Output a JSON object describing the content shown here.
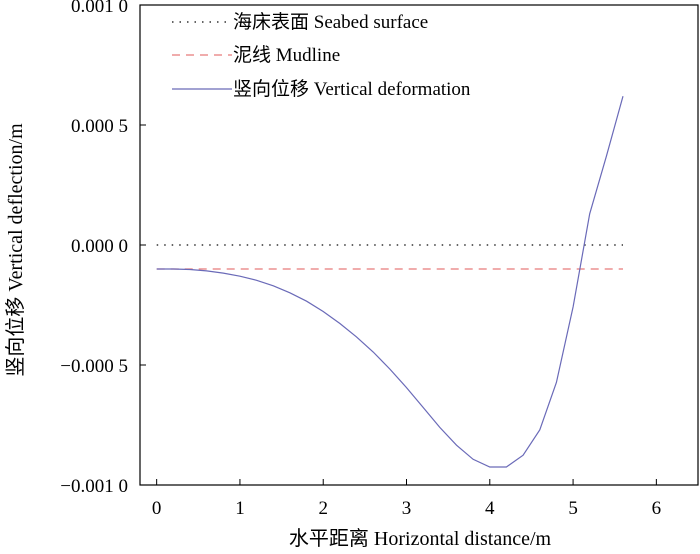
{
  "chart_data": {
    "type": "line",
    "xlabel": "水平距离 Horizontal distance/m",
    "ylabel": "竖向位移 Vertical deflection/m",
    "xlim": [
      -0.2,
      6.5
    ],
    "ylim": [
      -0.001,
      0.001
    ],
    "x_ticks": [
      {
        "value": 0,
        "label": "0"
      },
      {
        "value": 1,
        "label": "1"
      },
      {
        "value": 2,
        "label": "2"
      },
      {
        "value": 3,
        "label": "3"
      },
      {
        "value": 4,
        "label": "4"
      },
      {
        "value": 5,
        "label": "5"
      },
      {
        "value": 6,
        "label": "6"
      }
    ],
    "y_ticks": [
      {
        "value": 0.001,
        "label": "0.001 0"
      },
      {
        "value": 0.0005,
        "label": "0.000 5"
      },
      {
        "value": 0.0,
        "label": "0.000 0"
      },
      {
        "value": -0.0005,
        "label": "−0.000 5"
      },
      {
        "value": -0.001,
        "label": "−0.001 0"
      }
    ],
    "legend_position": "top-left",
    "series": [
      {
        "name": "海床表面 Seabed surface",
        "style": "dotted",
        "color": "#333333",
        "x": [
          0,
          5.6
        ],
        "y": [
          0.0,
          0.0
        ]
      },
      {
        "name": "泥线 Mudline",
        "style": "dashed",
        "color": "#e87a7a",
        "x": [
          0,
          5.6
        ],
        "y": [
          -0.0001,
          -0.0001
        ]
      },
      {
        "name": "竖向位移 Vertical deformation",
        "style": "solid",
        "color": "#6a6ab8",
        "x": [
          0,
          0.2,
          0.4,
          0.6,
          0.8,
          1.0,
          1.2,
          1.4,
          1.6,
          1.8,
          2.0,
          2.2,
          2.4,
          2.6,
          2.8,
          3.0,
          3.2,
          3.4,
          3.6,
          3.8,
          4.0,
          4.2,
          4.4,
          4.6,
          4.8,
          5.0,
          5.2,
          5.4,
          5.6
        ],
        "y": [
          -0.0001,
          -0.0001,
          -0.000102,
          -0.000108,
          -0.000117,
          -0.00013,
          -0.000147,
          -0.00017,
          -0.000199,
          -0.000234,
          -0.000277,
          -0.000327,
          -0.000383,
          -0.000446,
          -0.000517,
          -0.000594,
          -0.000677,
          -0.00076,
          -0.000834,
          -0.000893,
          -0.000925,
          -0.000925,
          -0.000876,
          -0.00077,
          -0.000573,
          -0.000258,
          0.00013,
          0.00037,
          0.00062
        ]
      }
    ]
  }
}
